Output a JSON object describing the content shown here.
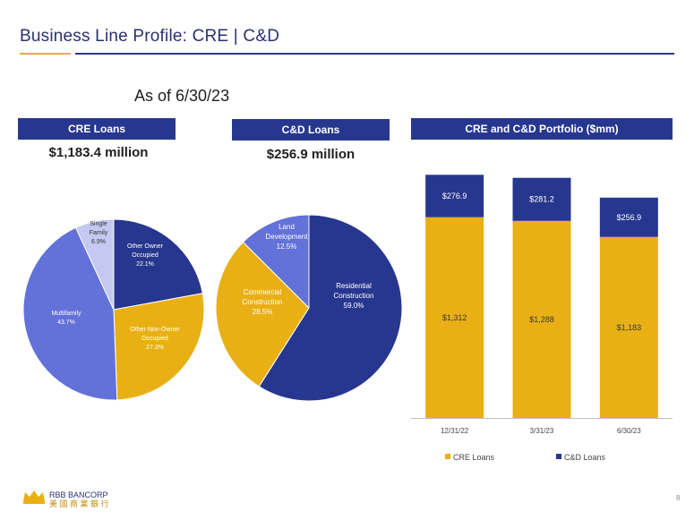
{
  "header": {
    "title": "Business Line Profile:  CRE | C&D",
    "as_of": "As of 6/30/23"
  },
  "panels": {
    "cre": {
      "header": "CRE Loans",
      "total": "$1,183.4 million"
    },
    "cd": {
      "header": "C&D Loans",
      "total": "$256.9 million"
    },
    "portfolio": {
      "header": "CRE and C&D Portfolio ($mm)"
    }
  },
  "colors": {
    "navy": "#27378f",
    "gold": "#e9b015",
    "periwinkle": "#6272d9",
    "lavender": "#c5c8f0"
  },
  "chart_data": [
    {
      "type": "pie",
      "slices": [
        {
          "label_lines": [
            "Other Owner",
            "Occupied",
            "22.1%"
          ],
          "value": 22.1,
          "color": "#27378f",
          "text_color": "#ffffff"
        },
        {
          "label_lines": [
            "Other Non-Owner",
            "Occupied",
            "27.3%"
          ],
          "value": 27.3,
          "color": "#e9b015",
          "text_color": "#ffffff"
        },
        {
          "label_lines": [
            "Multifamily",
            "43.7%"
          ],
          "value": 43.7,
          "color": "#6272d9",
          "text_color": "#ffffff"
        },
        {
          "label_lines": [
            "Single",
            "Family",
            "6.9%"
          ],
          "value": 6.9,
          "color": "#c5c8f0",
          "text_color": "#333333"
        }
      ]
    },
    {
      "type": "pie",
      "slices": [
        {
          "label_lines": [
            "Residential",
            "Construction",
            "59.0%"
          ],
          "value": 59.0,
          "color": "#27378f",
          "text_color": "#ffffff"
        },
        {
          "label_lines": [
            "Commercial",
            "Construction",
            "28.5%"
          ],
          "value": 28.5,
          "color": "#e9b015",
          "text_color": "#ffffff"
        },
        {
          "label_lines": [
            "Land",
            "Development",
            "12.5%"
          ],
          "value": 12.5,
          "color": "#6272d9",
          "text_color": "#ffffff"
        }
      ]
    },
    {
      "type": "bar",
      "stacked": true,
      "categories": [
        "12/31/22",
        "3/31/23",
        "6/30/23"
      ],
      "series": [
        {
          "name": "CRE Loans",
          "values": [
            1312,
            1288,
            1183
          ],
          "labels": [
            "$1,312",
            "$1,288",
            "$1,183"
          ],
          "color": "#e9b015"
        },
        {
          "name": "C&D Loans",
          "values": [
            276.9,
            281.2,
            256.9
          ],
          "labels": [
            "$276.9",
            "$281.2",
            "$256.9"
          ],
          "color": "#27378f"
        }
      ],
      "legend": "bottom"
    }
  ],
  "footer": {
    "logo_line1": "RBB BANCORP",
    "logo_line2": "美 國 商 業 銀 行",
    "page_number": "8"
  }
}
